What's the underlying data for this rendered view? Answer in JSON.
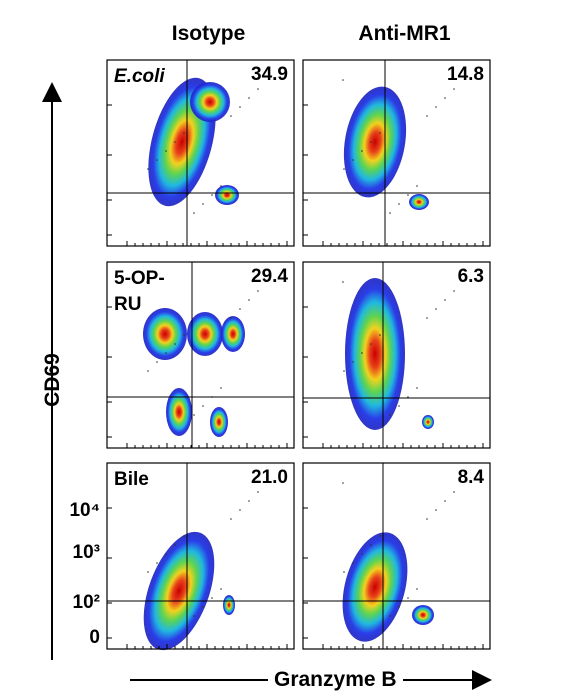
{
  "columns": [
    "Isotype",
    "Anti-MR1"
  ],
  "rows": [
    {
      "label": "E.coli",
      "values": [
        "34.9",
        "14.8"
      ]
    },
    {
      "label": "5-OP-RU",
      "values": [
        "29.4",
        "6.3"
      ]
    },
    {
      "label": "Bile",
      "values": [
        "21.0",
        "8.4"
      ]
    }
  ],
  "y_axis": {
    "title": "CD69",
    "ticks": [
      "10⁴",
      "10³",
      "10²",
      "0"
    ]
  },
  "x_axis": {
    "title": "Granzyme B"
  }
}
